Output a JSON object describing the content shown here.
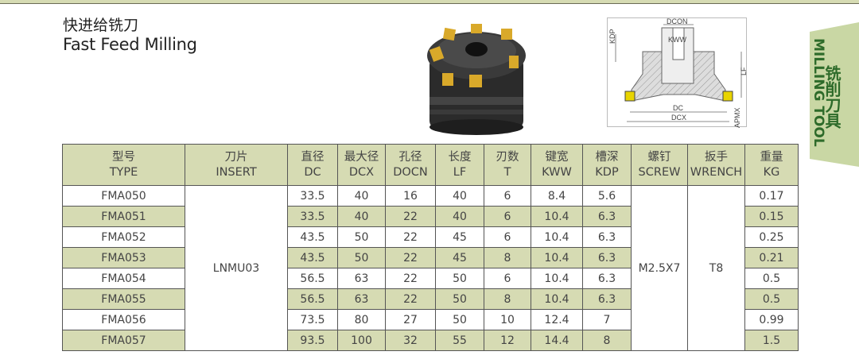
{
  "header": {
    "title_zh": "快进给铣刀",
    "title_en": "Fast Feed Milling"
  },
  "side_tab": {
    "zh": "铣削刀具",
    "en": "MILLING TOOL",
    "bg": "#c9d7a4",
    "fg": "#2e6b2a"
  },
  "diagram_labels": {
    "dcon": "DCON",
    "kww": "KWW",
    "kdp": "KDP",
    "lf": "LF",
    "dc": "DC",
    "dcx": "DCX",
    "apmx": "APMX"
  },
  "table": {
    "headers": [
      [
        "型号",
        "TYPE"
      ],
      [
        "刀片",
        "INSERT"
      ],
      [
        "直径",
        "DC"
      ],
      [
        "最大径",
        "DCX"
      ],
      [
        "孔径",
        "DOCN"
      ],
      [
        "长度",
        "LF"
      ],
      [
        "刃数",
        "T"
      ],
      [
        "键宽",
        "KWW"
      ],
      [
        "槽深",
        "KDP"
      ],
      [
        "螺钉",
        "SCREW"
      ],
      [
        "扳手",
        "WRENCH"
      ],
      [
        "重量",
        "KG"
      ]
    ],
    "insert": "LNMU03",
    "screw": "M2.5X7",
    "wrench": "T8",
    "rows": [
      {
        "type": "FMA050",
        "dc": "33.5",
        "dcx": "40",
        "docn": "16",
        "lf": "40",
        "t": "6",
        "kww": "8.4",
        "kdp": "5.6",
        "kg": "0.17"
      },
      {
        "type": "FMA051",
        "dc": "33.5",
        "dcx": "40",
        "docn": "22",
        "lf": "40",
        "t": "6",
        "kww": "10.4",
        "kdp": "6.3",
        "kg": "0.15"
      },
      {
        "type": "FMA052",
        "dc": "43.5",
        "dcx": "50",
        "docn": "22",
        "lf": "45",
        "t": "6",
        "kww": "10.4",
        "kdp": "6.3",
        "kg": "0.25"
      },
      {
        "type": "FMA053",
        "dc": "43.5",
        "dcx": "50",
        "docn": "22",
        "lf": "45",
        "t": "8",
        "kww": "10.4",
        "kdp": "6.3",
        "kg": "0.21"
      },
      {
        "type": "FMA054",
        "dc": "56.5",
        "dcx": "63",
        "docn": "22",
        "lf": "50",
        "t": "6",
        "kww": "10.4",
        "kdp": "6.3",
        "kg": "0.5"
      },
      {
        "type": "FMA055",
        "dc": "56.5",
        "dcx": "63",
        "docn": "22",
        "lf": "50",
        "t": "8",
        "kww": "10.4",
        "kdp": "6.3",
        "kg": "0.5"
      },
      {
        "type": "FMA056",
        "dc": "73.5",
        "dcx": "80",
        "docn": "27",
        "lf": "50",
        "t": "10",
        "kww": "12.4",
        "kdp": "7",
        "kg": "0.99"
      },
      {
        "type": "FMA057",
        "dc": "93.5",
        "dcx": "100",
        "docn": "32",
        "lf": "55",
        "t": "12",
        "kww": "14.4",
        "kdp": "8",
        "kg": "1.5"
      }
    ]
  }
}
